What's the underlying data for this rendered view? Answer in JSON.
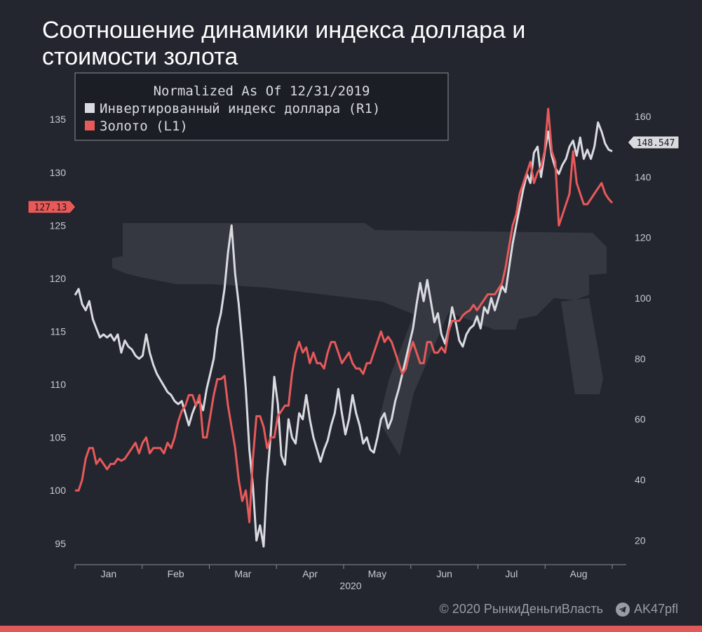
{
  "title_lines": [
    "Соотношение динамики индекса доллара и",
    "стоимости золота"
  ],
  "legend": {
    "heading": "Normalized As Of 12/31/2019",
    "items": [
      {
        "label": "Инвертированный индекс доллара (R1)",
        "color": "#d9dbe1"
      },
      {
        "label": "Золото (L1)",
        "color": "#e8595a"
      }
    ]
  },
  "chart_data": {
    "type": "line",
    "x_ticks": [
      "Jan",
      "Feb",
      "Mar",
      "Apr",
      "May",
      "Jun",
      "Jul",
      "Aug"
    ],
    "year_label": "2020",
    "left_axis": {
      "ticks": [
        95,
        100,
        105,
        110,
        115,
        120,
        125,
        130,
        135
      ],
      "range": [
        93,
        137
      ]
    },
    "right_axis": {
      "ticks": [
        20,
        40,
        60,
        80,
        100,
        120,
        140,
        160
      ],
      "range": [
        12,
        166
      ]
    },
    "last_value_left": "127.13",
    "last_value_right": "148.547",
    "series": [
      {
        "name": "Инвертированный индекс доллара (R1)",
        "axis": "right",
        "color": "#d9dbe1",
        "points": [
          [
            0,
            101
          ],
          [
            1,
            103
          ],
          [
            2,
            98
          ],
          [
            3,
            96
          ],
          [
            4,
            99
          ],
          [
            5,
            93
          ],
          [
            6,
            90
          ],
          [
            7,
            87
          ],
          [
            8,
            88
          ],
          [
            9,
            87
          ],
          [
            10,
            88
          ],
          [
            11,
            86
          ],
          [
            12,
            88
          ],
          [
            13,
            82
          ],
          [
            14,
            86
          ],
          [
            15,
            84
          ],
          [
            16,
            83
          ],
          [
            17,
            81
          ],
          [
            18,
            80
          ],
          [
            19,
            81
          ],
          [
            20,
            88
          ],
          [
            21,
            82
          ],
          [
            22,
            78
          ],
          [
            23,
            75
          ],
          [
            24,
            73
          ],
          [
            25,
            71
          ],
          [
            26,
            69
          ],
          [
            27,
            68
          ],
          [
            28,
            66
          ],
          [
            29,
            65
          ],
          [
            30,
            66
          ],
          [
            31,
            62
          ],
          [
            32,
            58
          ],
          [
            33,
            62
          ],
          [
            34,
            65
          ],
          [
            35,
            66
          ],
          [
            36,
            63
          ],
          [
            37,
            70
          ],
          [
            38,
            75
          ],
          [
            39,
            80
          ],
          [
            40,
            90
          ],
          [
            41,
            95
          ],
          [
            42,
            103
          ],
          [
            43,
            115
          ],
          [
            44,
            124
          ],
          [
            45,
            108
          ],
          [
            46,
            98
          ],
          [
            47,
            85
          ],
          [
            48,
            70
          ],
          [
            49,
            50
          ],
          [
            50,
            38
          ],
          [
            51,
            20
          ],
          [
            52,
            25
          ],
          [
            53,
            18
          ],
          [
            54,
            40
          ],
          [
            55,
            55
          ],
          [
            56,
            74
          ],
          [
            57,
            65
          ],
          [
            58,
            48
          ],
          [
            59,
            45
          ],
          [
            60,
            60
          ],
          [
            61,
            54
          ],
          [
            62,
            52
          ],
          [
            63,
            62
          ],
          [
            64,
            60
          ],
          [
            65,
            68
          ],
          [
            66,
            60
          ],
          [
            67,
            54
          ],
          [
            68,
            50
          ],
          [
            69,
            46
          ],
          [
            70,
            50
          ],
          [
            71,
            53
          ],
          [
            72,
            58
          ],
          [
            73,
            62
          ],
          [
            74,
            70
          ],
          [
            75,
            62
          ],
          [
            76,
            55
          ],
          [
            77,
            60
          ],
          [
            78,
            68
          ],
          [
            79,
            62
          ],
          [
            80,
            58
          ],
          [
            81,
            52
          ],
          [
            82,
            54
          ],
          [
            83,
            50
          ],
          [
            84,
            49
          ],
          [
            85,
            54
          ],
          [
            86,
            60
          ],
          [
            87,
            62
          ],
          [
            88,
            57
          ],
          [
            89,
            60
          ],
          [
            90,
            66
          ],
          [
            91,
            70
          ],
          [
            92,
            75
          ],
          [
            93,
            80
          ],
          [
            94,
            85
          ],
          [
            95,
            90
          ],
          [
            96,
            98
          ],
          [
            97,
            105
          ],
          [
            98,
            99
          ],
          [
            99,
            106
          ],
          [
            100,
            99
          ],
          [
            101,
            92
          ],
          [
            102,
            95
          ],
          [
            103,
            88
          ],
          [
            104,
            85
          ],
          [
            105,
            90
          ],
          [
            106,
            97
          ],
          [
            107,
            92
          ],
          [
            108,
            86
          ],
          [
            109,
            84
          ],
          [
            110,
            88
          ],
          [
            111,
            90
          ],
          [
            112,
            91
          ],
          [
            113,
            94
          ],
          [
            114,
            90
          ],
          [
            115,
            97
          ],
          [
            116,
            95
          ],
          [
            117,
            100
          ],
          [
            118,
            96
          ],
          [
            119,
            100
          ],
          [
            120,
            104
          ],
          [
            121,
            102
          ],
          [
            122,
            110
          ],
          [
            123,
            118
          ],
          [
            124,
            124
          ],
          [
            125,
            130
          ],
          [
            126,
            136
          ],
          [
            127,
            141
          ],
          [
            128,
            138
          ],
          [
            129,
            148
          ],
          [
            130,
            150
          ],
          [
            131,
            140
          ],
          [
            132,
            148
          ],
          [
            133,
            155
          ],
          [
            134,
            147
          ],
          [
            135,
            143
          ],
          [
            136,
            141
          ],
          [
            137,
            144
          ],
          [
            138,
            146
          ],
          [
            139,
            150
          ],
          [
            140,
            152
          ],
          [
            141,
            147
          ],
          [
            142,
            153
          ],
          [
            143,
            146
          ],
          [
            144,
            149
          ],
          [
            145,
            146
          ],
          [
            146,
            150
          ],
          [
            147,
            158
          ],
          [
            148,
            155
          ],
          [
            149,
            151
          ],
          [
            150,
            149
          ],
          [
            151,
            148.5
          ]
        ]
      },
      {
        "name": "Золото (L1)",
        "axis": "left",
        "color": "#e8595a",
        "points": [
          [
            0,
            100
          ],
          [
            1,
            100
          ],
          [
            2,
            101
          ],
          [
            3,
            103
          ],
          [
            4,
            104
          ],
          [
            5,
            104
          ],
          [
            6,
            102.5
          ],
          [
            7,
            103
          ],
          [
            8,
            102.5
          ],
          [
            9,
            102
          ],
          [
            10,
            102.5
          ],
          [
            11,
            102.5
          ],
          [
            12,
            103
          ],
          [
            13,
            102.8
          ],
          [
            14,
            103
          ],
          [
            15,
            103.5
          ],
          [
            16,
            104
          ],
          [
            17,
            104.5
          ],
          [
            18,
            103.5
          ],
          [
            19,
            104.5
          ],
          [
            20,
            105
          ],
          [
            21,
            103.5
          ],
          [
            22,
            104
          ],
          [
            23,
            104
          ],
          [
            24,
            104
          ],
          [
            25,
            103.5
          ],
          [
            26,
            104.5
          ],
          [
            27,
            104
          ],
          [
            28,
            105
          ],
          [
            29,
            106.5
          ],
          [
            30,
            107.5
          ],
          [
            31,
            108
          ],
          [
            32,
            109
          ],
          [
            33,
            109
          ],
          [
            34,
            108
          ],
          [
            35,
            109
          ],
          [
            36,
            105
          ],
          [
            37,
            105
          ],
          [
            38,
            107
          ],
          [
            39,
            109
          ],
          [
            40,
            110.5
          ],
          [
            41,
            110.5
          ],
          [
            42,
            110.8
          ],
          [
            43,
            108
          ],
          [
            44,
            106
          ],
          [
            45,
            104
          ],
          [
            46,
            101
          ],
          [
            47,
            99
          ],
          [
            48,
            100
          ],
          [
            49,
            97
          ],
          [
            50,
            103
          ],
          [
            51,
            107
          ],
          [
            52,
            107
          ],
          [
            53,
            106
          ],
          [
            54,
            104
          ],
          [
            55,
            105
          ],
          [
            56,
            105
          ],
          [
            57,
            107
          ],
          [
            58,
            107.5
          ],
          [
            59,
            108
          ],
          [
            60,
            108
          ],
          [
            61,
            111
          ],
          [
            62,
            113
          ],
          [
            63,
            114
          ],
          [
            64,
            113
          ],
          [
            65,
            113.5
          ],
          [
            66,
            112
          ],
          [
            67,
            113
          ],
          [
            68,
            112
          ],
          [
            69,
            112
          ],
          [
            70,
            111.5
          ],
          [
            71,
            113
          ],
          [
            72,
            114
          ],
          [
            73,
            114
          ],
          [
            74,
            113
          ],
          [
            75,
            112
          ],
          [
            76,
            112.5
          ],
          [
            77,
            113
          ],
          [
            78,
            112
          ],
          [
            79,
            111.5
          ],
          [
            80,
            111.5
          ],
          [
            81,
            111
          ],
          [
            82,
            112
          ],
          [
            83,
            112
          ],
          [
            84,
            113
          ],
          [
            85,
            114
          ],
          [
            86,
            115
          ],
          [
            87,
            114
          ],
          [
            88,
            114.5
          ],
          [
            89,
            114
          ],
          [
            90,
            113
          ],
          [
            91,
            112
          ],
          [
            92,
            111
          ],
          [
            93,
            111.5
          ],
          [
            94,
            113
          ],
          [
            95,
            114
          ],
          [
            96,
            113
          ],
          [
            97,
            112
          ],
          [
            98,
            112
          ],
          [
            99,
            114
          ],
          [
            100,
            114
          ],
          [
            101,
            113
          ],
          [
            102,
            113
          ],
          [
            103,
            113.5
          ],
          [
            104,
            113
          ],
          [
            105,
            115
          ],
          [
            106,
            116
          ],
          [
            107,
            116
          ],
          [
            108,
            116
          ],
          [
            109,
            116.5
          ],
          [
            110,
            116.8
          ],
          [
            111,
            117
          ],
          [
            112,
            117.5
          ],
          [
            113,
            117
          ],
          [
            114,
            117.5
          ],
          [
            115,
            118
          ],
          [
            116,
            118.5
          ],
          [
            117,
            118.5
          ],
          [
            118,
            118.5
          ],
          [
            119,
            119
          ],
          [
            120,
            119.5
          ],
          [
            121,
            121
          ],
          [
            122,
            123
          ],
          [
            123,
            125
          ],
          [
            124,
            126
          ],
          [
            125,
            128
          ],
          [
            126,
            129
          ],
          [
            127,
            130
          ],
          [
            128,
            131
          ],
          [
            129,
            129
          ],
          [
            130,
            130
          ],
          [
            131,
            130.5
          ],
          [
            132,
            132
          ],
          [
            133,
            136
          ],
          [
            134,
            132
          ],
          [
            135,
            131
          ],
          [
            136,
            125
          ],
          [
            137,
            126
          ],
          [
            138,
            127
          ],
          [
            139,
            128
          ],
          [
            140,
            132
          ],
          [
            141,
            129
          ],
          [
            142,
            128
          ],
          [
            143,
            127
          ],
          [
            144,
            127
          ],
          [
            145,
            127.5
          ],
          [
            146,
            128
          ],
          [
            147,
            128.5
          ],
          [
            148,
            129
          ],
          [
            149,
            128
          ],
          [
            150,
            127.5
          ],
          [
            151,
            127.13
          ]
        ]
      }
    ]
  },
  "footer": {
    "copyright": "© 2020  РынкиДеньгиВласть",
    "telegram": "AK47pfl"
  }
}
